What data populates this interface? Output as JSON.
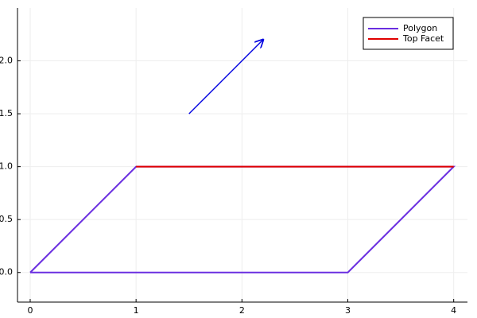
{
  "chart_data": {
    "type": "line",
    "xlim": [
      -0.12,
      4.13
    ],
    "ylim": [
      -0.28,
      2.5
    ],
    "xticks": [
      0,
      1,
      2,
      3,
      4
    ],
    "yticks": [
      {
        "value": 0,
        "label": "0.0"
      },
      {
        "value": 0.5,
        "label": "0.5"
      },
      {
        "value": 1,
        "label": "1.0"
      },
      {
        "value": 1.5,
        "label": "1.5"
      },
      {
        "value": 2,
        "label": "2.0"
      }
    ],
    "grid": true,
    "legend": "top-right",
    "series": [
      {
        "name": "Polygon",
        "color": "#6a2ee0",
        "x": [
          0,
          1,
          4,
          3,
          0
        ],
        "values": [
          0,
          1,
          1,
          0,
          0
        ]
      },
      {
        "name": "Top Facet",
        "color": "#e00000",
        "x": [
          1,
          4
        ],
        "values": [
          1,
          1
        ]
      },
      {
        "color": "#0000e0",
        "x": [
          1.5,
          2.2
        ],
        "values": [
          1.5,
          2.2
        ],
        "arrow": true
      }
    ]
  }
}
